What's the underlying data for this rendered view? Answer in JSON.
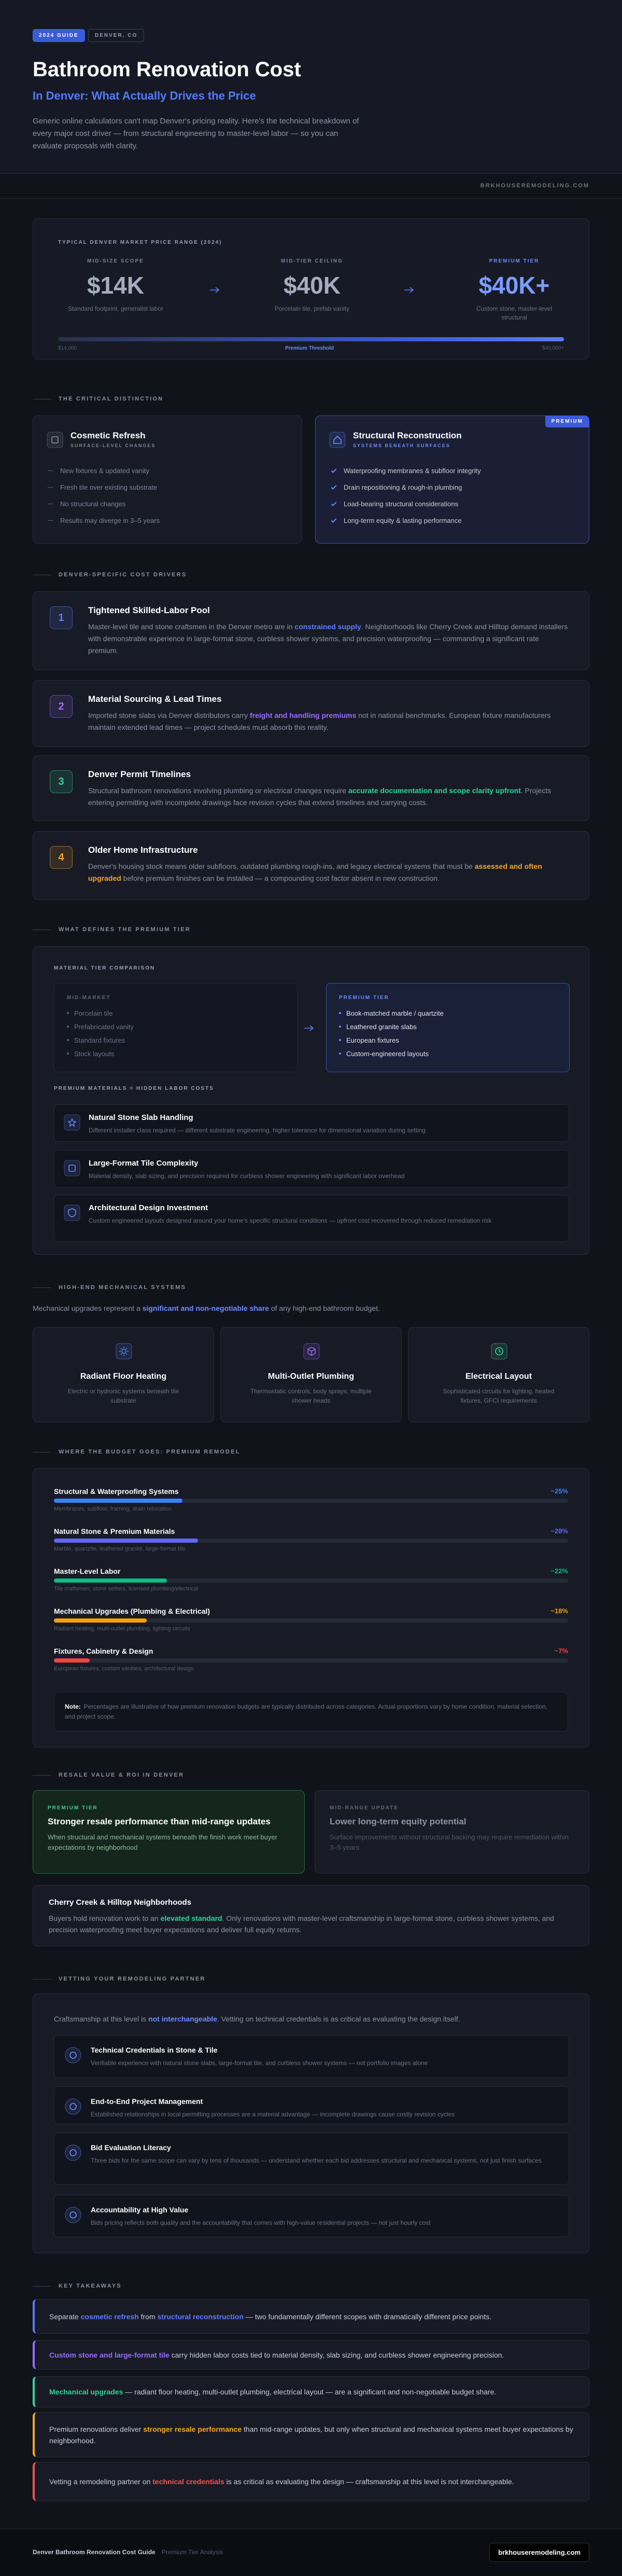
{
  "header": {
    "badge": "2024 GUIDE",
    "location": "DENVER, CO",
    "title": "Bathroom Renovation Cost",
    "subtitle": "In Denver: What Actually Drives the Price",
    "intro": "Generic online calculators can't map Denver's pricing reality. Here's the technical breakdown of every major cost driver — from structural engineering to master-level labor — so you can evaluate proposals with clarity."
  },
  "site": "BRKHOUSEREMODELING.COM",
  "price_range": {
    "label": "TYPICAL DENVER MARKET PRICE RANGE (2024)",
    "tiers": [
      {
        "name": "MID-SIZE SCOPE",
        "price": "$14K",
        "note": "Standard footprint, generalist labor"
      },
      {
        "name": "MID-TIER CEILING",
        "price": "$40K",
        "note": "Porcelain tile, prefab vanity"
      },
      {
        "name": "PREMIUM TIER",
        "price": "$40K+",
        "note": "Custom stone, master-level structural"
      }
    ],
    "scale": {
      "start": "$14,000",
      "middle": "Premium Threshold",
      "end": "$40,000+"
    }
  },
  "distinction": {
    "heading": "THE CRITICAL DISTINCTION",
    "cards": [
      {
        "title": "Cosmetic Refresh",
        "subtitle": "SURFACE-LEVEL CHANGES",
        "items": [
          "New fixtures & updated vanity",
          "Fresh tile over existing substrate",
          "No structural changes",
          "Results may diverge in 3–5 years"
        ]
      },
      {
        "title": "Structural Reconstruction",
        "subtitle": "SYSTEMS BENEATH SURFACES",
        "badge": "PREMIUM",
        "items": [
          "Waterproofing membranes & subfloor integrity",
          "Drain repositioning & rough-in plumbing",
          "Load-bearing structural considerations",
          "Long-term equity & lasting performance"
        ]
      }
    ]
  },
  "drivers": {
    "heading": "DENVER-SPECIFIC COST DRIVERS",
    "items": [
      {
        "number": "1",
        "color": "#5b7cff",
        "title": "Tightened Skilled-Labor Pool",
        "text": [
          "Master-level tile and stone craftsmen in the Denver metro are in ",
          {
            "strong": "constrained supply"
          },
          ". Neighborhoods like Cherry Creek and Hilltop demand installers with demonstrable experience in large-format stone, curbless shower systems, and precision waterproofing — commanding a significant rate premium."
        ]
      },
      {
        "number": "2",
        "color": "#9b6bff",
        "title": "Material Sourcing & Lead Times",
        "text": [
          "Imported stone slabs via Denver distributors carry ",
          {
            "strong": "freight and handling premiums"
          },
          " not in national benchmarks. European fixture manufacturers maintain extended lead times — project schedules must absorb this reality."
        ]
      },
      {
        "number": "3",
        "color": "#34d399",
        "title": "Denver Permit Timelines",
        "text": [
          "Structural bathroom renovations involving plumbing or electrical changes require ",
          {
            "strong": "accurate documentation and scope clarity upfront"
          },
          ". Projects entering permitting with incomplete drawings face revision cycles that extend timelines and carrying costs."
        ]
      },
      {
        "number": "4",
        "color": "#f5a524",
        "title": "Older Home Infrastructure",
        "text": [
          "Denver's housing stock means older subfloors, outdated plumbing rough-ins, and legacy electrical systems that must be ",
          {
            "strong": "assessed and often upgraded"
          },
          " before premium finishes can be installed — a compounding cost factor absent in new construction."
        ]
      }
    ]
  },
  "premium": {
    "heading": "WHAT DEFINES THE PREMIUM TIER",
    "comparison_label": "MATERIAL TIER COMPARISON",
    "columns": [
      {
        "name": "MID-MARKET",
        "items": [
          "Porcelain tile",
          "Prefabricated vanity",
          "Standard fixtures",
          "Stock layouts"
        ]
      },
      {
        "name": "PREMIUM TIER",
        "items": [
          "Book-matched marble / quartzite",
          "Leathered granite slabs",
          "European fixtures",
          "Custom-engineered layouts"
        ]
      }
    ],
    "hidden_label": "PREMIUM MATERIALS = HIDDEN LABOR COSTS",
    "items": [
      {
        "title": "Natural Stone Slab Handling",
        "text": "Different installer class required — different substrate engineering, higher tolerance for dimensional variation during setting"
      },
      {
        "title": "Large-Format Tile Complexity",
        "text": "Material density, slab sizing, and precision required for curbless shower engineering with significant labor overhead"
      },
      {
        "title": "Architectural Design Investment",
        "text": "Custom engineered layouts designed around your home's specific structural conditions — upfront cost recovered through reduced remediation risk"
      }
    ]
  },
  "mechanical": {
    "heading": "HIGH-END MECHANICAL SYSTEMS",
    "intro": [
      "Mechanical upgrades represent a ",
      {
        "strong": "significant and non-negotiable share"
      },
      " of any high-end bathroom budget."
    ],
    "items": [
      {
        "title": "Radiant Floor Heating",
        "text": "Electric or hydronic systems beneath tile substrate",
        "color": "#5b7cff"
      },
      {
        "title": "Multi-Outlet Plumbing",
        "text": "Thermostatic controls, body sprays, multiple shower heads",
        "color": "#9b6bff"
      },
      {
        "title": "Electrical Layout",
        "text": "Sophisticated circuits for lighting, heated fixtures, GFCI requirements",
        "color": "#34d399"
      }
    ]
  },
  "budget": {
    "heading": "WHERE THE BUDGET GOES: PREMIUM REMODEL",
    "items": [
      {
        "name": "Structural & Waterproofing Systems",
        "note": "Membranes, subfloor, framing, drain relocation",
        "value": 25,
        "value_label": "~25%",
        "color": "#3b82f6"
      },
      {
        "name": "Natural Stone & Premium Materials",
        "note": "Marble, quartzite, leathered granite, large-format tile",
        "value": 28,
        "value_label": "~28%",
        "color": "#6366f1"
      },
      {
        "name": "Master-Level Labor",
        "note": "Tile craftsmen, stone setters, licensed plumbing/electrical",
        "value": 22,
        "value_label": "~22%",
        "color": "#10b981"
      },
      {
        "name": "Mechanical Upgrades (Plumbing & Electrical)",
        "note": "Radiant heating, multi-outlet plumbing, lighting circuits",
        "value": 18,
        "value_label": "~18%",
        "color": "#f59e0b"
      },
      {
        "name": "Fixtures, Cabinetry & Design",
        "note": "European fixtures, custom vanities, architectural design",
        "value": 7,
        "value_label": "~7%",
        "color": "#ef4444"
      }
    ],
    "note_label": "Note:",
    "note": "Percentages are illustrative of how premium renovation budgets are typically distributed across categories. Actual proportions vary by home condition, material selection, and project scope."
  },
  "resale": {
    "heading": "RESALE VALUE & ROI IN DENVER",
    "cards": [
      {
        "tag": "PREMIUM TIER",
        "title": "Stronger resale performance than mid-range updates",
        "text": "When structural and mechanical systems beneath the finish work meet buyer expectations by neighborhood"
      },
      {
        "tag": "MID-RANGE UPDATE",
        "title": "Lower long-term equity potential",
        "text": "Surface improvements without structural backing may require remediation within 3–5 years"
      }
    ],
    "neighborhood": {
      "title": "Cherry Creek & Hilltop Neighborhoods",
      "text": [
        "Buyers hold renovation work to an ",
        {
          "strong": "elevated standard"
        },
        ". Only renovations with master-level craftsmanship in large-format stone, curbless shower systems, and precision waterproofing meet buyer expectations and deliver full equity returns."
      ]
    }
  },
  "vetting": {
    "heading": "VETTING YOUR REMODELING PARTNER",
    "intro": [
      "Craftsmanship at this level is ",
      {
        "strong": "not interchangeable"
      },
      ". Vetting on technical credentials is as critical as evaluating the design itself."
    ],
    "items": [
      {
        "title": "Technical Credentials in Stone & Tile",
        "text": "Verifiable experience with natural stone slabs, large-format tile, and curbless shower systems — not portfolio images alone"
      },
      {
        "title": "End-to-End Project Management",
        "text": "Established relationships in local permitting processes are a material advantage — incomplete drawings cause costly revision cycles"
      },
      {
        "title": "Bid Evaluation Literacy",
        "text": "Three bids for the same scope can vary by tens of thousands — understand whether each bid addresses structural and mechanical systems, not just finish surfaces"
      },
      {
        "title": "Accountability at High Value",
        "text": "Bids pricing reflects both quality and the accountability that comes with high-value residential projects — not just hourly cost"
      }
    ]
  },
  "takeaways": {
    "heading": "KEY TAKEAWAYS",
    "items": [
      {
        "color": "#5b7cff",
        "text": [
          "Separate ",
          {
            "strong": "cosmetic refresh"
          },
          " from ",
          {
            "strong": "structural reconstruction"
          },
          " — two fundamentally different scopes with dramatically different price points."
        ]
      },
      {
        "color": "#9b6bff",
        "text": [
          {
            "strong": "Custom stone and large-format tile"
          },
          " carry hidden labor costs tied to material density, slab sizing, and curbless shower engineering precision."
        ]
      },
      {
        "color": "#34d399",
        "text": [
          {
            "strong": "Mechanical upgrades"
          },
          " — radiant floor heating, multi-outlet plumbing, electrical layout — are a significant and non-negotiable budget share."
        ]
      },
      {
        "color": "#f5a524",
        "text": [
          "Premium renovations deliver ",
          {
            "strong": "stronger resale performance"
          },
          " than mid-range updates, but only when structural and mechanical systems meet buyer expectations by neighborhood."
        ]
      },
      {
        "color": "#f05252",
        "text": [
          "Vetting a remodeling partner on ",
          {
            "strong": "technical credentials"
          },
          " is as critical as evaluating the design — craftsmanship at this level is not interchangeable."
        ]
      }
    ]
  },
  "footer": {
    "title": "Denver Bathroom Renovation Cost Guide",
    "subtitle": "Premium Tier Analysis",
    "site": "brkhouseremodeling.com"
  }
}
